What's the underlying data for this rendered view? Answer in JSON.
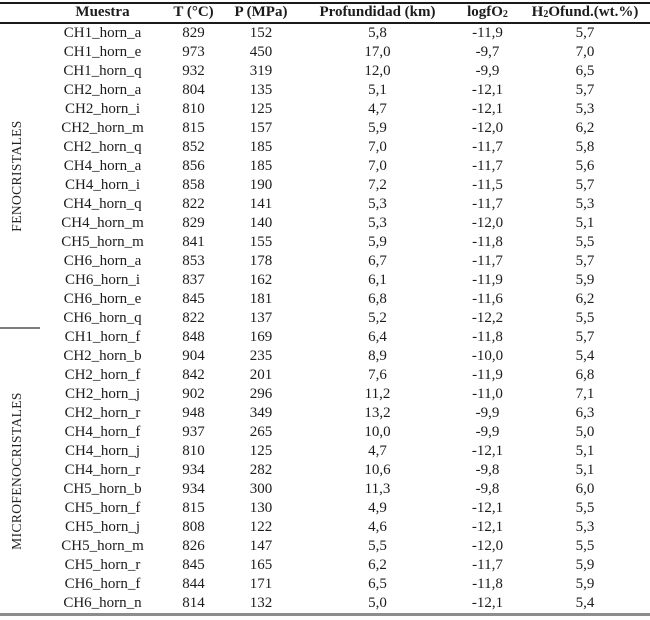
{
  "table": {
    "columns": [
      {
        "key": "muestra",
        "pre": "Muestra",
        "sub": "",
        "post": ""
      },
      {
        "key": "t-c",
        "pre": "T (°C)",
        "sub": "",
        "post": ""
      },
      {
        "key": "p-mpa",
        "pre": "P (MPa)",
        "sub": "",
        "post": ""
      },
      {
        "key": "profundidad-km",
        "pre": "Profundidad (km)",
        "sub": "",
        "post": ""
      },
      {
        "key": "logfo2",
        "pre": "logfO",
        "sub": "2",
        "post": ""
      },
      {
        "key": "h2o-fund",
        "pre": "H",
        "sub": "2",
        "post": "Ofund.(wt.%)"
      }
    ],
    "groups": [
      {
        "label": "FENOCRISTALES",
        "rows": [
          [
            "CH1_horn_a",
            "829",
            "152",
            "5,8",
            "-11,9",
            "5,7"
          ],
          [
            "CH1_horn_e",
            "973",
            "450",
            "17,0",
            "-9,7",
            "7,0"
          ],
          [
            "CH1_horn_q",
            "932",
            "319",
            "12,0",
            "-9,9",
            "6,5"
          ],
          [
            "CH2_horn_a",
            "804",
            "135",
            "5,1",
            "-12,1",
            "5,7"
          ],
          [
            "CH2_horn_i",
            "810",
            "125",
            "4,7",
            "-12,1",
            "5,3"
          ],
          [
            "CH2_horn_m",
            "815",
            "157",
            "5,9",
            "-12,0",
            "6,2"
          ],
          [
            "CH2_horn_q",
            "852",
            "185",
            "7,0",
            "-11,7",
            "5,8"
          ],
          [
            "CH4_horn_a",
            "856",
            "185",
            "7,0",
            "-11,7",
            "5,6"
          ],
          [
            "CH4_horn_i",
            "858",
            "190",
            "7,2",
            "-11,5",
            "5,7"
          ],
          [
            "CH4_horn_q",
            "822",
            "141",
            "5,3",
            "-11,7",
            "5,3"
          ],
          [
            "CH4_horn_m",
            "829",
            "140",
            "5,3",
            "-12,0",
            "5,1"
          ],
          [
            "CH5_horn_m",
            "841",
            "155",
            "5,9",
            "-11,8",
            "5,5"
          ],
          [
            "CH6_horn_a",
            "853",
            "178",
            "6,7",
            "-11,7",
            "5,7"
          ],
          [
            "CH6_horn_i",
            "837",
            "162",
            "6,1",
            "-11,9",
            "5,9"
          ],
          [
            "CH6_horn_e",
            "845",
            "181",
            "6,8",
            "-11,6",
            "6,2"
          ],
          [
            "CH6_horn_q",
            "822",
            "137",
            "5,2",
            "-12,2",
            "5,5"
          ]
        ]
      },
      {
        "label": "MICROFENOCRISTALES",
        "rows": [
          [
            "CH1_horn_f",
            "848",
            "169",
            "6,4",
            "-11,8",
            "5,7"
          ],
          [
            "CH2_horn_b",
            "904",
            "235",
            "8,9",
            "-10,0",
            "5,4"
          ],
          [
            "CH2_horn_f",
            "842",
            "201",
            "7,6",
            "-11,9",
            "6,8"
          ],
          [
            "CH2_horn_j",
            "902",
            "296",
            "11,2",
            "-11,0",
            "7,1"
          ],
          [
            "CH2_horn_r",
            "948",
            "349",
            "13,2",
            "-9,9",
            "6,3"
          ],
          [
            "CH4_horn_f",
            "937",
            "265",
            "10,0",
            "-9,9",
            "5,0"
          ],
          [
            "CH4_horn_j",
            "810",
            "125",
            "4,7",
            "-12,1",
            "5,1"
          ],
          [
            "CH4_horn_r",
            "934",
            "282",
            "10,6",
            "-9,8",
            "5,1"
          ],
          [
            "CH5_horn_b",
            "934",
            "300",
            "11,3",
            "-9,8",
            "6,0"
          ],
          [
            "CH5_horn_f",
            "815",
            "130",
            "4,9",
            "-12,1",
            "5,5"
          ],
          [
            "CH5_horn_j",
            "808",
            "122",
            "4,6",
            "-12,1",
            "5,3"
          ],
          [
            "CH5_horn_m",
            "826",
            "147",
            "5,5",
            "-12,0",
            "5,5"
          ],
          [
            "CH5_horn_r",
            "845",
            "165",
            "6,2",
            "-11,7",
            "5,9"
          ],
          [
            "CH6_horn_f",
            "844",
            "171",
            "6,5",
            "-11,8",
            "5,9"
          ],
          [
            "CH6_horn_n",
            "814",
            "132",
            "5,0",
            "-12,1",
            "5,4"
          ]
        ]
      }
    ]
  },
  "colors": {
    "text": "#1c1c1c",
    "top_rule": "#1a1a1a",
    "header_rule": "#1a1a1a",
    "bottom_rule": "#8d8d8d",
    "group_divider": "#7d7d7d"
  }
}
